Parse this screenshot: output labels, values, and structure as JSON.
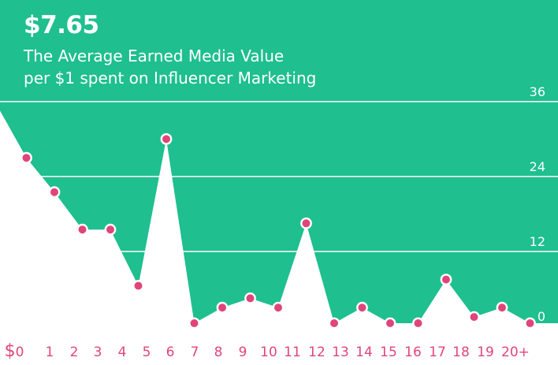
{
  "headline": "$7.65",
  "subtitle_line1": "The Average Earned Media Value",
  "subtitle_line2": "per $1 spent on Influencer Marketing",
  "colors": {
    "area": "#1fbf8f",
    "background": "#ffffff",
    "points": "#e0457a",
    "tick_labels": "#e0457a",
    "gridline": "#ffffff"
  },
  "chart_data": {
    "type": "area",
    "x": [
      "$0",
      "1",
      "2",
      "3",
      "4",
      "5",
      "6",
      "7",
      "8",
      "9",
      "10",
      "11",
      "12",
      "13",
      "14",
      "15",
      "16",
      "17",
      "18",
      "19",
      "20+"
    ],
    "series": [
      {
        "values": [
          35,
          27,
          21.5,
          15.5,
          15.5,
          6.5,
          30,
          0.5,
          3,
          4.5,
          3,
          16.5,
          0.5,
          3,
          0.5,
          0.5,
          7.5,
          1.5,
          3,
          0.5,
          0.5
        ]
      }
    ],
    "y_ticks": [
      0,
      12,
      24,
      36
    ],
    "ylim": [
      0,
      36
    ],
    "grid": true,
    "fill": "area above the line is filled green, below is white",
    "markers": "first and last values drawn without markers"
  }
}
